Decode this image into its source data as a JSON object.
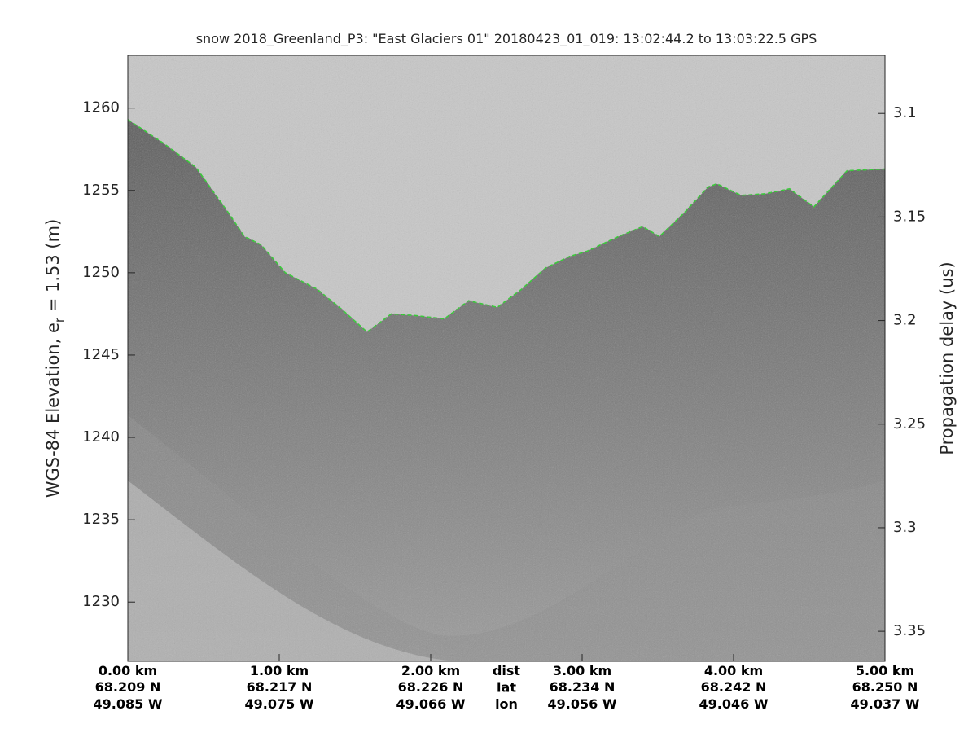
{
  "chart_data": {
    "type": "line",
    "title": "snow 2018_Greenland_P3: \"East Glaciers 01\"  20180423_01_019: 13:02:44.2 to 13:03:22.5 GPS",
    "y_label": {
      "text": "WGS-84 Elevation, e",
      "subscript": "r",
      "suffix": " = 1.53 (m)"
    },
    "y2_label": "Propagation delay (us)",
    "xlim": [
      0,
      5
    ],
    "xticks": [
      {
        "value": 0,
        "label": "0.00 km"
      },
      {
        "value": 1,
        "label": "1.00 km"
      },
      {
        "value": 2,
        "label": "2.00 km"
      },
      {
        "value": 3,
        "label": "3.00 km"
      },
      {
        "value": 4,
        "label": "4.00 km"
      },
      {
        "value": 5,
        "label": "5.00 km"
      }
    ],
    "lat": [
      "68.209 N",
      "68.217 N",
      "68.226 N",
      "68.234 N",
      "68.242 N",
      "68.250 N"
    ],
    "lon": [
      "49.085 W",
      "49.075 W",
      "49.066 W",
      "49.056 W",
      "49.046 W",
      "49.037 W"
    ],
    "x_row_labels": [
      "dist",
      "lat",
      "lon"
    ],
    "ylim": [
      1226.4,
      1263.2
    ],
    "yticks": [
      1230,
      1235,
      1240,
      1245,
      1250,
      1255,
      1260
    ],
    "y2lim": [
      3.072,
      3.3645
    ],
    "y2ticks": [
      3.1,
      3.15,
      3.2,
      3.25,
      3.3,
      3.35
    ],
    "series": [
      {
        "name": "Surface",
        "color": "#22cc22",
        "x": [
          0,
          0.23,
          0.45,
          0.66,
          0.77,
          0.88,
          1.04,
          1.25,
          1.41,
          1.58,
          1.74,
          1.9,
          2.09,
          2.25,
          2.44,
          2.6,
          2.76,
          2.92,
          3.03,
          3.24,
          3.4,
          3.51,
          3.67,
          3.83,
          3.89,
          4.05,
          4.21,
          4.37,
          4.53,
          4.75,
          5
        ],
        "values": [
          1259.3,
          1257.9,
          1256.4,
          1253.7,
          1252.2,
          1251.7,
          1250.0,
          1249.0,
          1247.8,
          1246.4,
          1247.5,
          1247.4,
          1247.2,
          1248.3,
          1247.9,
          1249.0,
          1250.3,
          1251.0,
          1251.3,
          1252.2,
          1252.8,
          1252.2,
          1253.6,
          1255.2,
          1255.4,
          1254.7,
          1254.8,
          1255.1,
          1254.0,
          1256.2,
          1256.3
        ]
      }
    ]
  }
}
